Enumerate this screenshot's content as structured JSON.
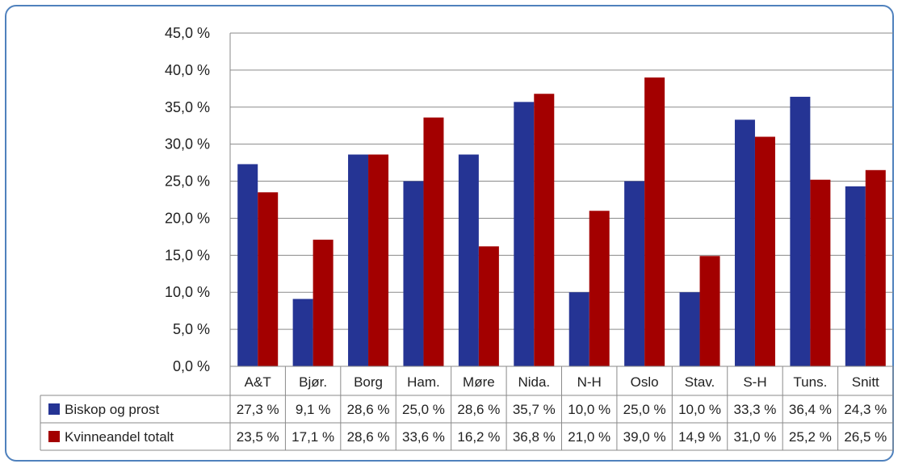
{
  "chart_data": {
    "type": "bar",
    "categories": [
      "A&T",
      "Bjør.",
      "Borg",
      "Ham.",
      "Møre",
      "Nida.",
      "N-H",
      "Oslo",
      "Stav.",
      "S-H",
      "Tuns.",
      "Snitt"
    ],
    "ylim": [
      0,
      45
    ],
    "yticks": [
      "0,0 %",
      "5,0 %",
      "10,0 %",
      "15,0 %",
      "20,0 %",
      "25,0 %",
      "30,0 %",
      "35,0 %",
      "40,0 %",
      "45,0 %"
    ],
    "grid": true,
    "legend_position": "data-table",
    "series": [
      {
        "name": "Biskop og prost",
        "color": "#253494",
        "values": [
          27.3,
          9.1,
          28.6,
          25.0,
          28.6,
          35.7,
          10.0,
          25.0,
          10.0,
          33.3,
          36.4,
          24.3
        ],
        "labels": [
          "27,3 %",
          "9,1 %",
          "28,6 %",
          "25,0 %",
          "28,6 %",
          "35,7 %",
          "10,0 %",
          "25,0 %",
          "10,0 %",
          "33,3 %",
          "36,4 %",
          "24,3 %"
        ]
      },
      {
        "name": "Kvinneandel totalt",
        "color": "#a30000",
        "values": [
          23.5,
          17.1,
          28.6,
          33.6,
          16.2,
          36.8,
          21.0,
          39.0,
          14.9,
          31.0,
          25.2,
          26.5
        ],
        "labels": [
          "23,5 %",
          "17,1 %",
          "28,6 %",
          "33,6 %",
          "16,2 %",
          "36,8 %",
          "21,0 %",
          "39,0 %",
          "14,9 %",
          "31,0 %",
          "25,2 %",
          "26,5 %"
        ]
      }
    ]
  }
}
